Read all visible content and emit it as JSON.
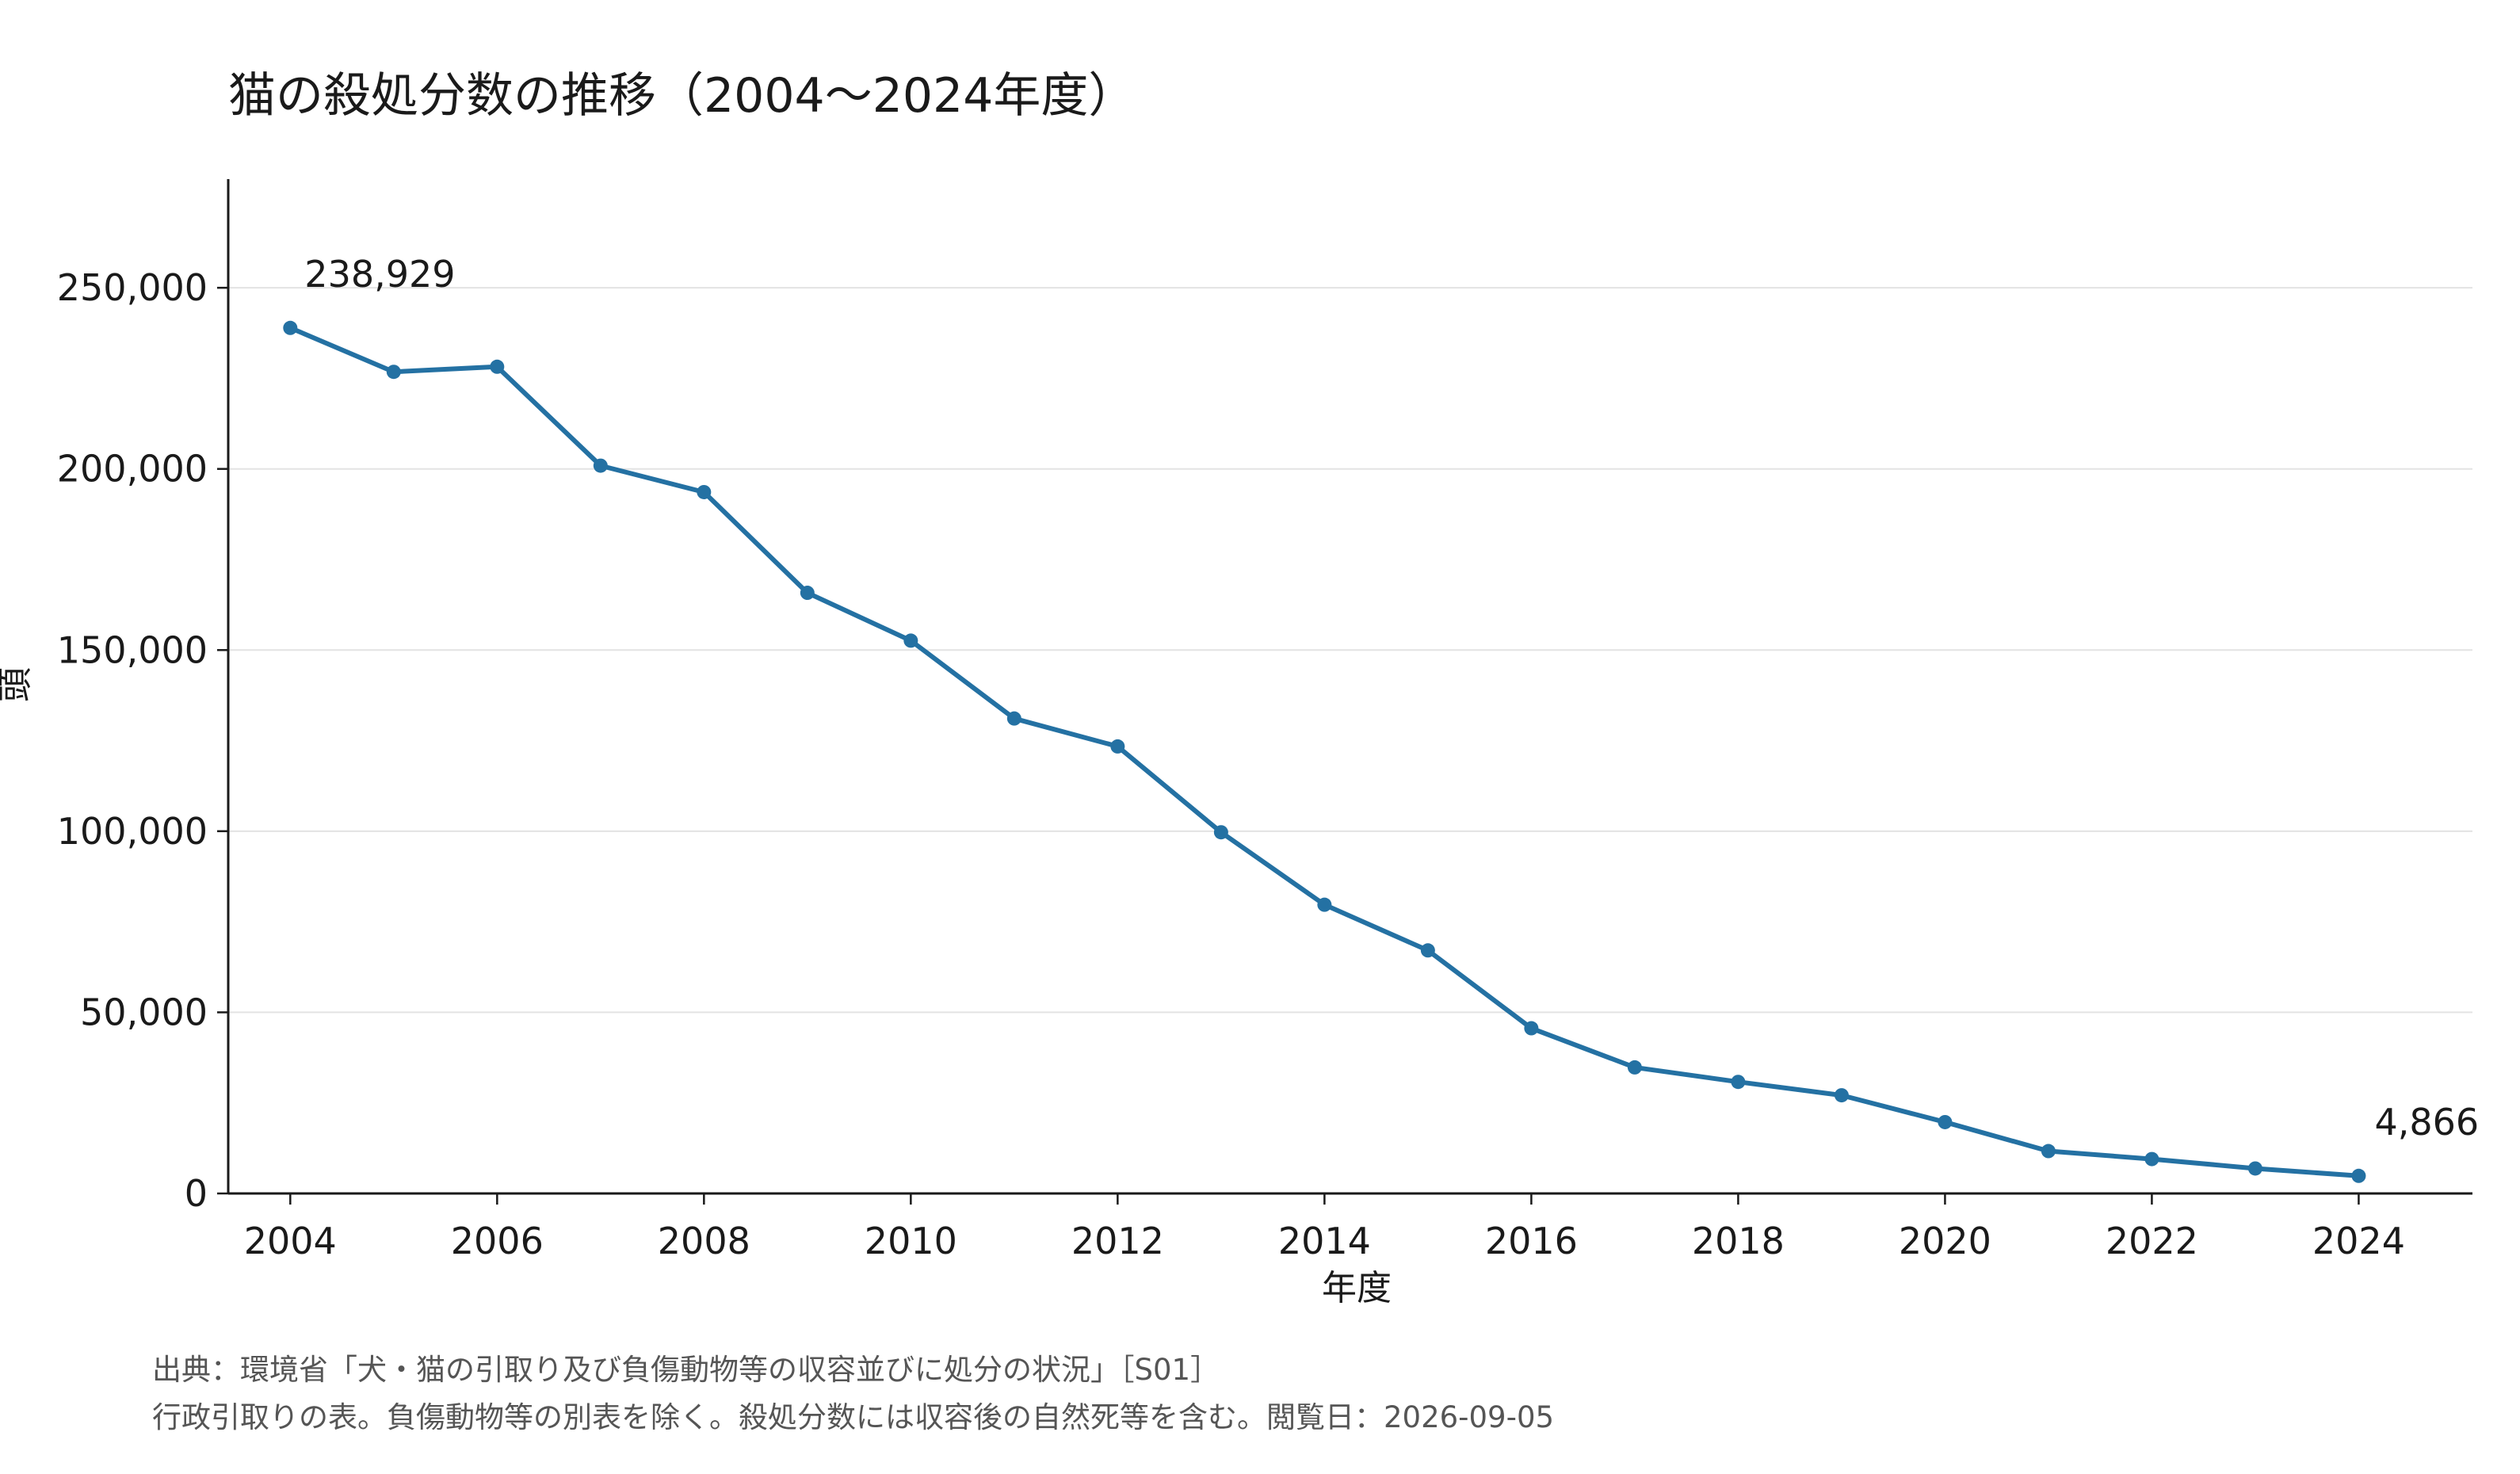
{
  "chart_data": {
    "type": "line",
    "title": "猫の殺処分数の推移（2004〜2024年度）",
    "xlabel": "年度",
    "ylabel": "頭",
    "xlim": [
      2003.4,
      2025.1
    ],
    "ylim": [
      0,
      280000
    ],
    "x_ticks": [
      "2004",
      "2006",
      "2008",
      "2010",
      "2012",
      "2014",
      "2016",
      "2018",
      "2020",
      "2022",
      "2024"
    ],
    "y_ticks": [
      "0",
      "50,000",
      "100,000",
      "150,000",
      "200,000",
      "250,000"
    ],
    "grid": "horizontal",
    "legend": "none",
    "series": [
      {
        "color": "#2471a3",
        "x": [
          2004,
          2005,
          2006,
          2007,
          2008,
          2009,
          2010,
          2011,
          2012,
          2013,
          2014,
          2015,
          2016,
          2017,
          2018,
          2019,
          2020,
          2021,
          2022,
          2023,
          2024
        ],
        "values": [
          238929,
          226800,
          228200,
          200900,
          193600,
          165800,
          152600,
          131100,
          123400,
          99700,
          79700,
          67100,
          45600,
          34800,
          30800,
          27100,
          19700,
          11700,
          9500,
          6900,
          4866
        ]
      }
    ],
    "annotations": [
      {
        "x": 2004,
        "y": 238929,
        "text": "238,929"
      },
      {
        "x": 2024,
        "y": 4866,
        "text": "4,866"
      }
    ]
  },
  "footnote": {
    "source": "出典：環境省「犬・猫の引取り及び負傷動物等の収容並びに処分の状況」［S01］",
    "note": "行政引取りの表。負傷動物等の別表を除く。殺処分数には収容後の自然死等を含む。閲覧日：2026-09-05"
  }
}
